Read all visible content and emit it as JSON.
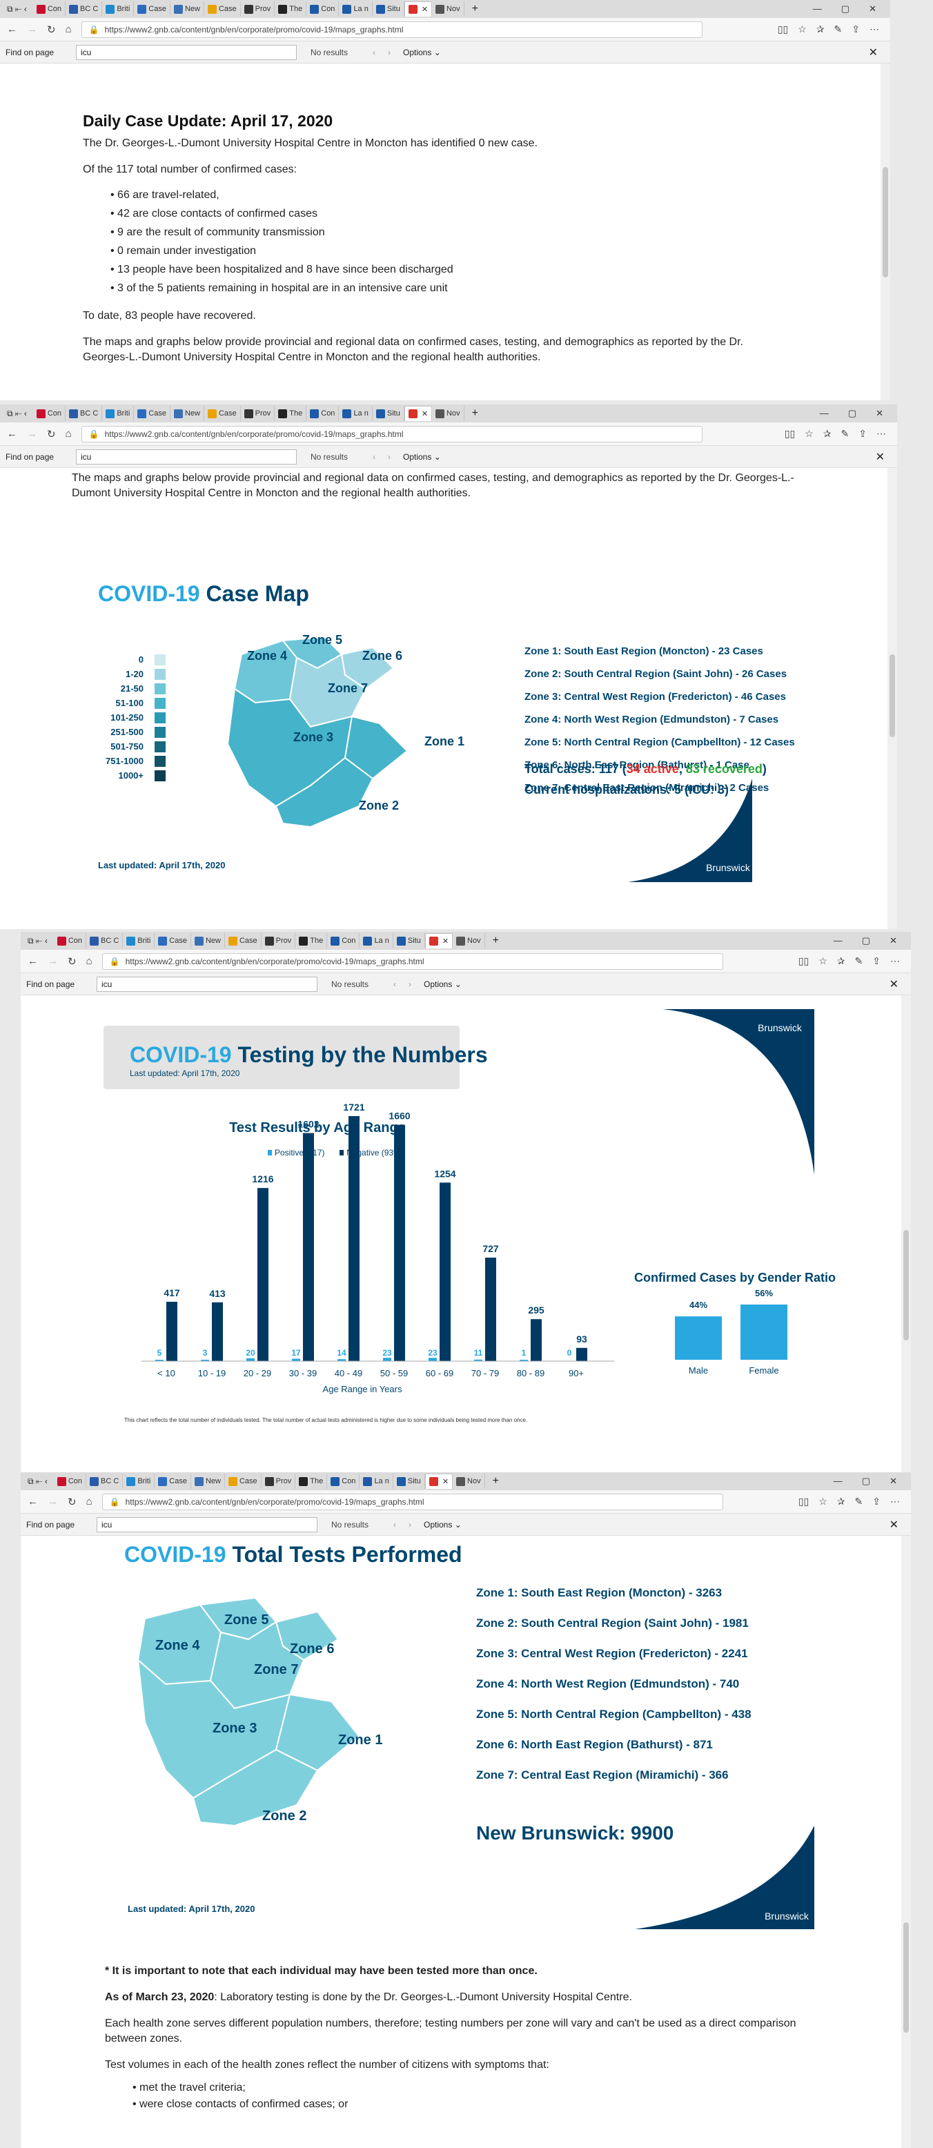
{
  "browser": {
    "tabs": [
      "Con",
      "BC C",
      "Briti",
      "Case",
      "New",
      "Case",
      "Prov",
      "The",
      "Con",
      "La n",
      "Situ",
      "",
      "Nov"
    ],
    "active_tab": "",
    "url": "https://www2.gnb.ca/content/gnb/en/corporate/promo/covid-19/maps_graphs.html",
    "find": {
      "label": "Find on page",
      "query": "icu",
      "results": "No results",
      "options": "Options"
    }
  },
  "update": {
    "title": "Daily Case Update: April 17, 2020",
    "intro": "The Dr. Georges-L.-Dumont University Hospital Centre in Moncton has identified 0 new case.",
    "lead": "Of the 117 total number of confirmed cases:",
    "bullets": [
      "66 are travel-related,",
      "42 are close contacts of confirmed cases",
      "9 are the result of community transmission",
      "0 remain under investigation",
      "13 people have been hospitalized and 8 have since been discharged",
      "3 of the 5 patients remaining in hospital are in an intensive care unit"
    ],
    "recovered": "To date, 83 people have recovered.",
    "maps_note": "The maps and graphs below provide provincial and regional data on confirmed cases, testing, and demographics as reported by the Dr. Georges-L.-Dumont University Hospital Centre in Moncton and the regional health authorities."
  },
  "case_map": {
    "title_a": "COVID-19",
    "title_b": "Case Map",
    "legend": [
      "0",
      "1-20",
      "21-50",
      "51-100",
      "101-250",
      "251-500",
      "501-750",
      "751-1000",
      "1000+"
    ],
    "legend_colors": [
      "#cfe8f0",
      "#9fd6e4",
      "#6cc6d7",
      "#45b3c9",
      "#2a9bb2",
      "#1e8097",
      "#17687e",
      "#115267",
      "#0b3f51"
    ],
    "zones": [
      "Zone 1",
      "Zone 2",
      "Zone 3",
      "Zone 4",
      "Zone 5",
      "Zone 6",
      "Zone 7"
    ],
    "zone_list": [
      "Zone 1: South East Region (Moncton) - 23 Cases",
      "Zone 2: South Central Region (Saint John) - 26 Cases",
      "Zone 3: Central West Region (Fredericton) - 46 Cases",
      "Zone 4: North West Region (Edmundston) - 7 Cases",
      "Zone 5: North Central Region (Campbellton) - 12 Cases",
      "Zone 6: North East Region (Bathurst) - 1 Case",
      "Zone 7: Central East Region (Miramichi) - 2 Cases"
    ],
    "total_prefix": "Total cases: 117 (",
    "total_active": "34 active",
    "total_sep": ", ",
    "total_recovered": "83 recovered",
    "total_suffix": ")",
    "hosp": "Current hospitalizations: 5 (ICU: 3)",
    "updated": "Last updated: April 17th, 2020",
    "brand": "Brunswick"
  },
  "testing": {
    "title_a": "COVID-19",
    "title_b": "Testing by the Numbers",
    "updated": "Last updated: April 17th, 2020",
    "brand": "Brunswick",
    "footnote": "This chart reflects the total number of individuals tested. The total number of actual tests administered is higher due to some individuals being tested more than once."
  },
  "chart_data": [
    {
      "type": "bar",
      "title": "Test Results by Age Range",
      "xlabel": "Age Range in Years",
      "ylabel": "",
      "categories": [
        "< 10",
        "10 - 19",
        "20 - 29",
        "30 - 39",
        "40 - 49",
        "50 - 59",
        "60 - 69",
        "70 - 79",
        "80 - 89",
        "90+"
      ],
      "series": [
        {
          "name": "Positive (117)",
          "color": "#29a8e0",
          "values": [
            5,
            3,
            20,
            17,
            14,
            23,
            23,
            11,
            1,
            0
          ]
        },
        {
          "name": "Negative (9398)",
          "color": "#003a63",
          "values": [
            417,
            413,
            1216,
            1602,
            1721,
            1660,
            1254,
            727,
            295,
            93
          ]
        }
      ],
      "legend": "top"
    },
    {
      "type": "bar",
      "title": "Confirmed Cases by Gender Ratio",
      "categories": [
        "Male",
        "Female"
      ],
      "values": [
        44,
        56
      ],
      "value_labels": [
        "44%",
        "56%"
      ],
      "color": "#29a8e0"
    }
  ],
  "total_tests": {
    "title_a": "COVID-19",
    "title_b": "Total Tests Performed",
    "zone_list": [
      "Zone 1: South East Region (Moncton) - 3263",
      "Zone 2: South Central Region (Saint John) - 1981",
      "Zone 3: Central West Region (Fredericton) - 2241",
      "Zone 4: North West Region (Edmundston) - 740",
      "Zone 5: North Central Region (Campbellton) - 438",
      "Zone 6: North East Region (Bathurst) - 871",
      "Zone 7: Central East Region (Miramichi) - 366"
    ],
    "total": "New Brunswick: 9900",
    "updated": "Last updated: April 17th, 2020",
    "brand": "Brunswick"
  },
  "notes": {
    "important": "* It is important to note that each individual may have been tested more than once.",
    "march_lead": "As of March 23, 2020",
    "march_rest": ": Laboratory testing is done by the Dr. Georges-L.-Dumont University Hospital Centre.",
    "zones_note": "Each health zone serves different population numbers, therefore; testing numbers per zone will vary and can't be used as a direct comparison between zones.",
    "volumes": "Test volumes in each of the health zones reflect the number of citizens with symptoms that:",
    "criteria": [
      "met the travel criteria;",
      "were close contacts of confirmed cases; or"
    ]
  }
}
